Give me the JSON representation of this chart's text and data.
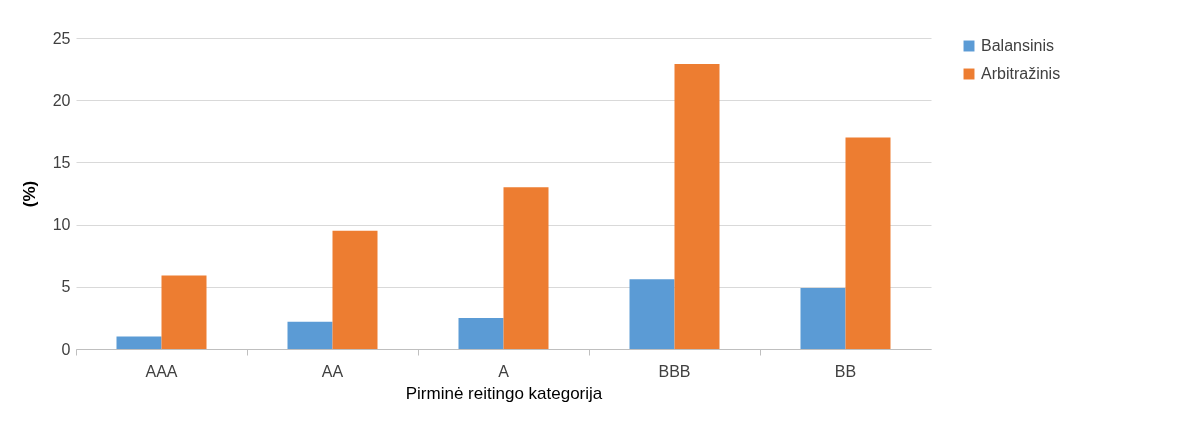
{
  "chart_data": {
    "type": "bar",
    "xlabel": "Pirminė reitingo kategorija",
    "ylabel": "(%)",
    "categories": [
      "AAA",
      "AA",
      "A",
      "BBB",
      "BB"
    ],
    "series": [
      {
        "name": "Balansinis",
        "color": "#5b9bd5",
        "values": [
          1.0,
          2.2,
          2.5,
          5.6,
          4.9
        ]
      },
      {
        "name": "Arbitražinis",
        "color": "#ed7d31",
        "values": [
          5.9,
          9.5,
          13.0,
          22.9,
          17.0
        ]
      }
    ],
    "ylim": [
      0,
      25
    ],
    "yticks": [
      0,
      5,
      10,
      15,
      20,
      25
    ],
    "grid": "y",
    "legend": "right"
  }
}
